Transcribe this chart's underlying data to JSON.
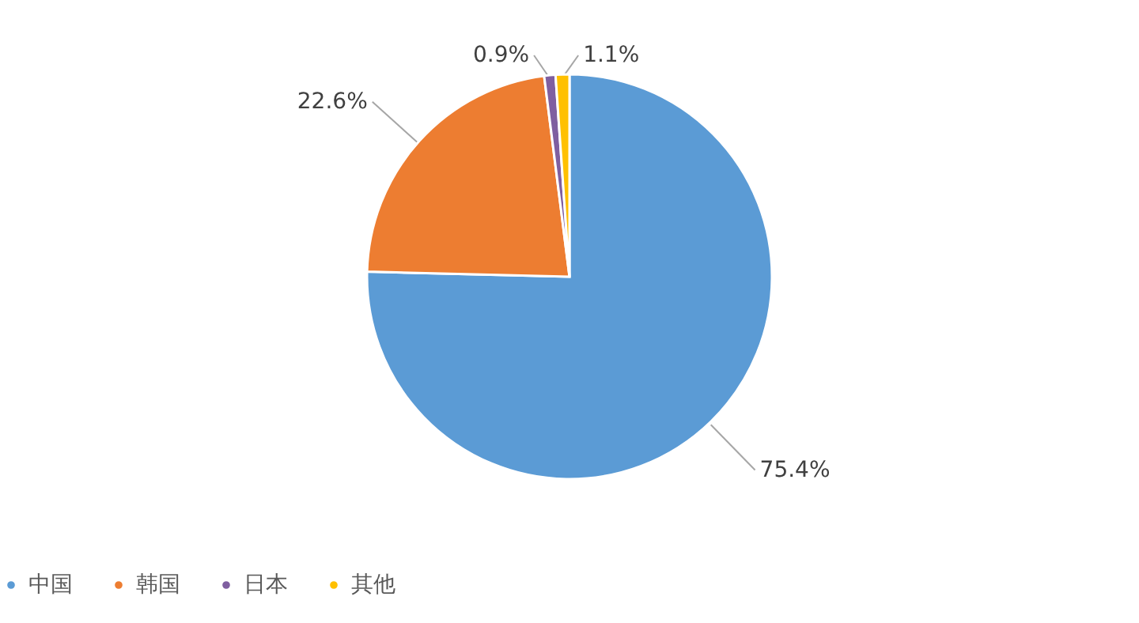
{
  "chart_data": {
    "type": "pie",
    "categories": [
      "中国",
      "韩国",
      "日本",
      "其他"
    ],
    "values": [
      75.4,
      22.6,
      0.9,
      1.1
    ],
    "colors": [
      "#5b9bd5",
      "#ed7d31",
      "#7f5fa0",
      "#ffc000"
    ],
    "value_labels": [
      "75.4%",
      "22.6%",
      "0.9%",
      "1.1%"
    ],
    "legend": "bottom"
  }
}
